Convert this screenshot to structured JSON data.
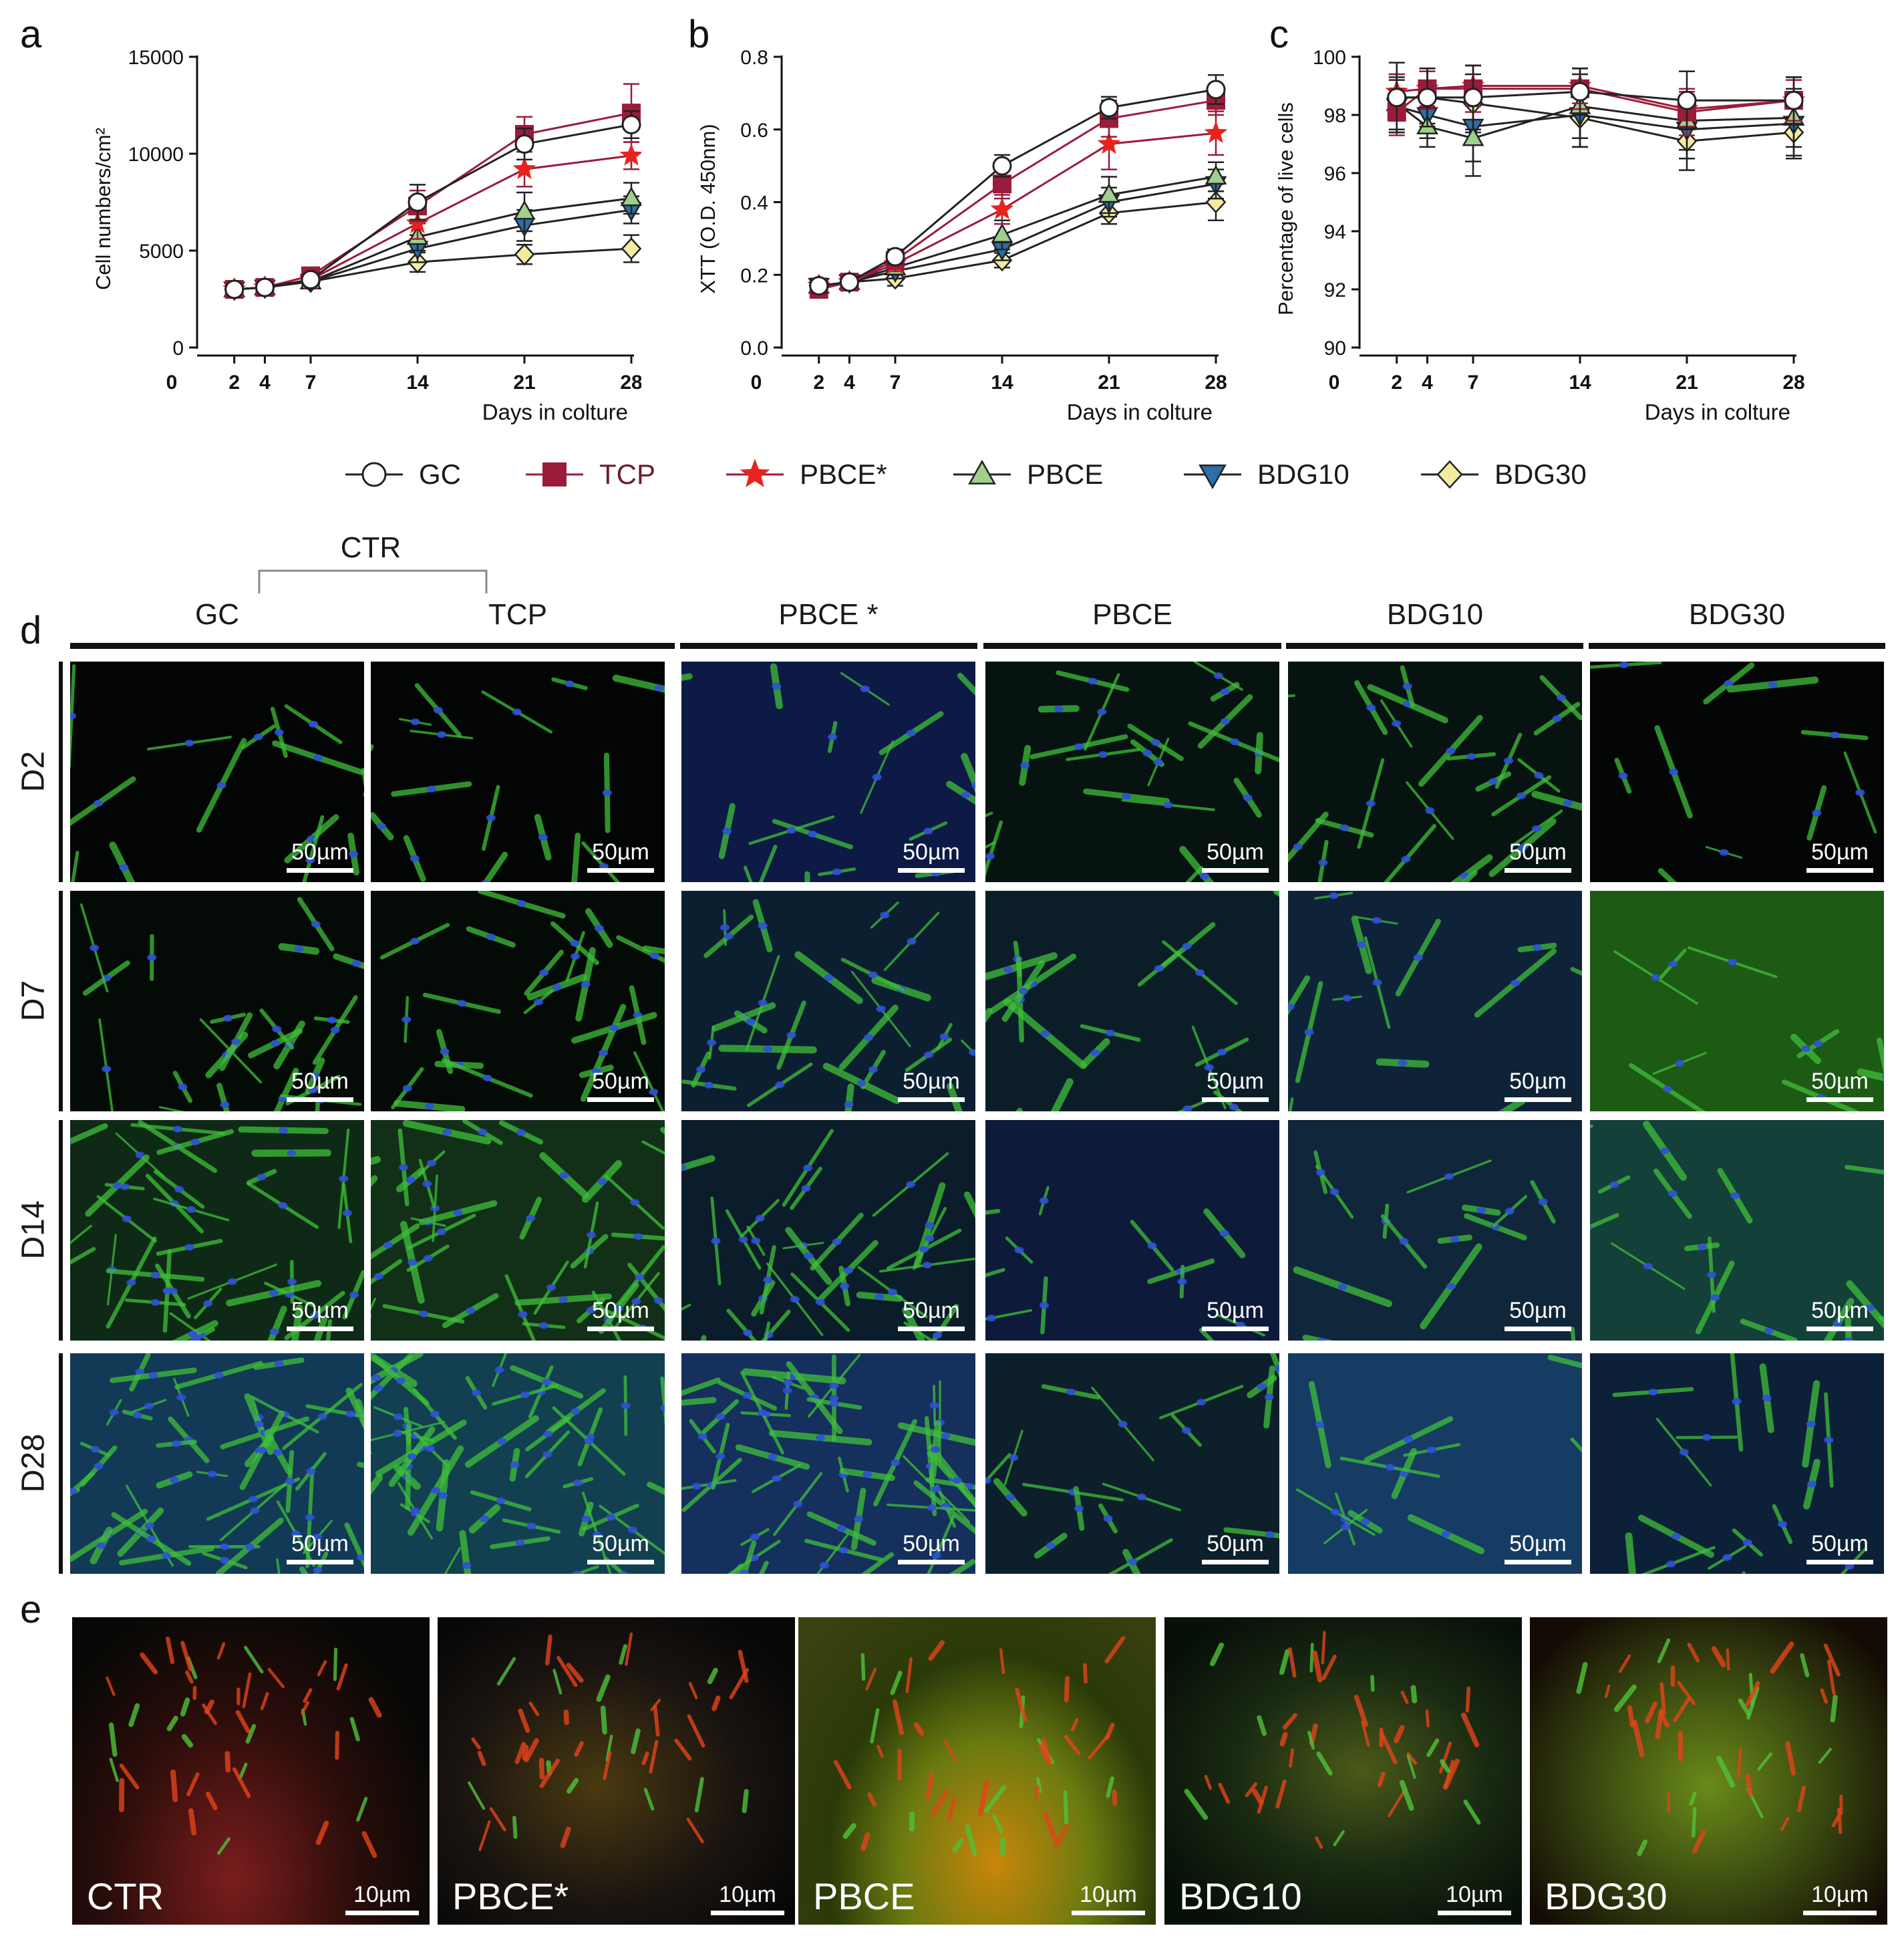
{
  "panels": {
    "a": {
      "letter": "a"
    },
    "b": {
      "letter": "b"
    },
    "c": {
      "letter": "c"
    },
    "d": {
      "letter": "d"
    },
    "e": {
      "letter": "e"
    }
  },
  "colors": {
    "GC": "#ffffff",
    "TCP": "#9b1b3a",
    "PBCE_star": "#e8231e",
    "PBCE": "#9fd08c",
    "BDG10": "#2a6fa8",
    "BDG30": "#f3eca0"
  },
  "legend": [
    {
      "name": "GC",
      "marker": "circle",
      "color": "#ffffff",
      "line": "#222222"
    },
    {
      "name": "TCP",
      "marker": "square",
      "color": "#9b1b3a",
      "line": "#9b1b3a"
    },
    {
      "name": "PBCE*",
      "marker": "star",
      "color": "#e8231e",
      "line": "#9b1b3a"
    },
    {
      "name": "PBCE",
      "marker": "triangle-up",
      "color": "#9fd08c",
      "line": "#222222"
    },
    {
      "name": "BDG10",
      "marker": "triangle-down",
      "color": "#2a6fa8",
      "line": "#222222"
    },
    {
      "name": "BDG30",
      "marker": "diamond",
      "color": "#f3eca0",
      "line": "#222222"
    }
  ],
  "chart_data": [
    {
      "type": "line",
      "panel": "a",
      "xlabel": "Days in colture",
      "ylabel": "Cell numbers/cm²",
      "x": [
        2,
        4,
        7,
        14,
        21,
        28
      ],
      "xticks": [
        0,
        2,
        4,
        7,
        14,
        21,
        28
      ],
      "xlim": [
        0,
        28
      ],
      "ylim": [
        0,
        15000
      ],
      "yticks": [
        0,
        5000,
        10000,
        15000
      ],
      "series": [
        {
          "name": "GC",
          "values": [
            3000,
            3100,
            3500,
            7500,
            10500,
            11500
          ],
          "err": [
            150,
            150,
            300,
            900,
            800,
            700
          ]
        },
        {
          "name": "TCP",
          "values": [
            3000,
            3100,
            3700,
            7300,
            11000,
            12100
          ],
          "err": [
            150,
            150,
            300,
            800,
            900,
            1500
          ]
        },
        {
          "name": "PBCE*",
          "values": [
            3000,
            3100,
            3500,
            6400,
            9200,
            9900
          ],
          "err": [
            150,
            150,
            300,
            800,
            900,
            700
          ]
        },
        {
          "name": "PBCE",
          "values": [
            3000,
            3100,
            3400,
            5700,
            7000,
            7700
          ],
          "err": [
            150,
            150,
            300,
            700,
            1000,
            800
          ]
        },
        {
          "name": "BDG10",
          "values": [
            3000,
            3100,
            3400,
            5100,
            6300,
            7100
          ],
          "err": [
            150,
            150,
            300,
            700,
            800,
            700
          ]
        },
        {
          "name": "BDG30",
          "values": [
            3000,
            3100,
            3400,
            4400,
            4800,
            5100
          ],
          "err": [
            150,
            150,
            300,
            500,
            500,
            700
          ]
        }
      ]
    },
    {
      "type": "line",
      "panel": "b",
      "xlabel": "Days in colture",
      "ylabel": "XTT (O.D. 450nm)",
      "x": [
        2,
        4,
        7,
        14,
        21,
        28
      ],
      "xticks": [
        0,
        2,
        4,
        7,
        14,
        21,
        28
      ],
      "xlim": [
        0,
        28
      ],
      "ylim": [
        0,
        0.8
      ],
      "yticks": [
        0.0,
        0.2,
        0.4,
        0.6,
        0.8
      ],
      "ytick_labels": [
        "0.0",
        "0.2",
        "0.4",
        "0.6",
        "0.8"
      ],
      "series": [
        {
          "name": "GC",
          "values": [
            0.17,
            0.18,
            0.25,
            0.5,
            0.66,
            0.71
          ],
          "err": [
            0.02,
            0.01,
            0.02,
            0.03,
            0.03,
            0.04
          ]
        },
        {
          "name": "TCP",
          "values": [
            0.16,
            0.18,
            0.24,
            0.45,
            0.63,
            0.68
          ],
          "err": [
            0.02,
            0.01,
            0.02,
            0.04,
            0.05,
            0.04
          ]
        },
        {
          "name": "PBCE*",
          "values": [
            0.17,
            0.18,
            0.23,
            0.38,
            0.56,
            0.59
          ],
          "err": [
            0.02,
            0.01,
            0.02,
            0.04,
            0.07,
            0.06
          ]
        },
        {
          "name": "PBCE",
          "values": [
            0.17,
            0.18,
            0.22,
            0.31,
            0.42,
            0.47
          ],
          "err": [
            0.02,
            0.01,
            0.02,
            0.04,
            0.05,
            0.04
          ]
        },
        {
          "name": "BDG10",
          "values": [
            0.17,
            0.18,
            0.21,
            0.27,
            0.4,
            0.45
          ],
          "err": [
            0.02,
            0.01,
            0.02,
            0.03,
            0.04,
            0.04
          ]
        },
        {
          "name": "BDG30",
          "values": [
            0.17,
            0.18,
            0.19,
            0.24,
            0.37,
            0.4
          ],
          "err": [
            0.02,
            0.01,
            0.02,
            0.02,
            0.03,
            0.05
          ]
        }
      ]
    },
    {
      "type": "line",
      "panel": "c",
      "xlabel": "Days in colture",
      "ylabel": "Percentage of live cells",
      "x": [
        2,
        4,
        7,
        14,
        21,
        28
      ],
      "xticks": [
        0,
        2,
        4,
        7,
        14,
        21,
        28
      ],
      "xlim": [
        0,
        28
      ],
      "ylim": [
        90,
        100
      ],
      "yticks": [
        90,
        92,
        94,
        96,
        98,
        100
      ],
      "series": [
        {
          "name": "GC",
          "values": [
            98.6,
            98.6,
            98.6,
            98.8,
            98.5,
            98.5
          ],
          "err": [
            1.2,
            1.0,
            1.1,
            0.8,
            1.0,
            0.8
          ]
        },
        {
          "name": "TCP",
          "values": [
            98.1,
            98.9,
            98.9,
            98.9,
            98.1,
            98.5
          ],
          "err": [
            0.8,
            0.7,
            0.8,
            0.7,
            0.8,
            0.7
          ]
        },
        {
          "name": "PBCE*",
          "values": [
            98.8,
            98.9,
            99.0,
            99.0,
            98.2,
            98.5
          ],
          "err": [
            0.6,
            0.6,
            0.7,
            0.6,
            0.6,
            0.8
          ]
        },
        {
          "name": "PBCE",
          "values": [
            98.4,
            97.6,
            97.2,
            98.3,
            97.8,
            97.9
          ],
          "err": [
            0.9,
            0.7,
            1.3,
            1.1,
            1.0,
            1.0
          ]
        },
        {
          "name": "BDG10",
          "values": [
            98.3,
            98.0,
            97.6,
            98.0,
            97.5,
            97.7
          ],
          "err": [
            0.9,
            0.8,
            1.2,
            1.1,
            1.0,
            1.1
          ]
        },
        {
          "name": "BDG30",
          "values": [
            98.6,
            98.6,
            98.4,
            97.9,
            97.1,
            97.4
          ],
          "err": [
            0.8,
            0.9,
            1.0,
            1.0,
            1.0,
            0.9
          ]
        }
      ]
    }
  ],
  "grid_d": {
    "group_label": "CTR",
    "columns": [
      "GC",
      "TCP",
      "PBCE *",
      "PBCE",
      "BDG10",
      "BDG30"
    ],
    "rows": [
      "D2",
      "D7",
      "D14",
      "D28"
    ],
    "scale_label": "50µm"
  },
  "grid_e": {
    "labels": [
      "CTR",
      "PBCE*",
      "PBCE",
      "BDG10",
      "BDG30"
    ],
    "scale_label": "10µm"
  }
}
